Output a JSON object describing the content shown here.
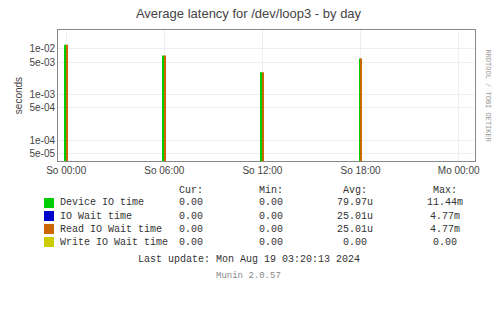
{
  "chart_data": {
    "type": "bar",
    "title": "Average latency for /dev/loop3 - by day",
    "ylabel": "seconds",
    "x": [
      0,
      21600,
      43200,
      64800
    ],
    "series": [
      {
        "name": "Device IO time",
        "color": "#00cc00",
        "values": [
          0.012,
          0.007,
          0.003,
          0.006
        ]
      },
      {
        "name": "IO Wait time",
        "color": "#0000cc"
      },
      {
        "name": "Read IO Wait time",
        "color": "#cc6600",
        "values": [
          0.012,
          0.007,
          0.003,
          0.006
        ]
      },
      {
        "name": "Write IO Wait time",
        "color": "#cccc00"
      }
    ],
    "xlim": [
      -1800,
      90000
    ],
    "xticks": [
      {
        "value": 0,
        "label": "So 00:00"
      },
      {
        "value": 21600,
        "label": "So 06:00"
      },
      {
        "value": 43200,
        "label": "So 12:00"
      },
      {
        "value": 64800,
        "label": "So 18:00"
      },
      {
        "value": 86400,
        "label": "Mo 00:00"
      }
    ],
    "ylim": [
      3.5e-05,
      0.025
    ],
    "yticks": [
      {
        "value": 5e-05,
        "label": "5e-05"
      },
      {
        "value": 0.0001,
        "label": "1e-04"
      },
      {
        "value": 0.0005,
        "label": "5e-04"
      },
      {
        "value": 0.001,
        "label": "1e-03"
      },
      {
        "value": 0.005,
        "label": "5e-03"
      },
      {
        "value": 0.01,
        "label": "1e-02"
      }
    ],
    "log": "y",
    "grid": true,
    "legend_table": {
      "columns": [
        "Cur:",
        "Min:",
        "Avg:",
        "Max:"
      ],
      "rows": [
        [
          "0.00",
          "0.00",
          "79.97u",
          "11.44m"
        ],
        [
          "0.00",
          "0.00",
          "25.01u",
          "4.77m"
        ],
        [
          "0.00",
          "0.00",
          "25.01u",
          "4.77m"
        ],
        [
          "0.00",
          "0.00",
          "0.00",
          "0.00"
        ]
      ]
    },
    "annotations": [
      "Last update: Mon Aug 19 03:20:13 2024",
      "Munin 2.0.57",
      "RRDTOOL / TOBI OETIKER"
    ]
  }
}
